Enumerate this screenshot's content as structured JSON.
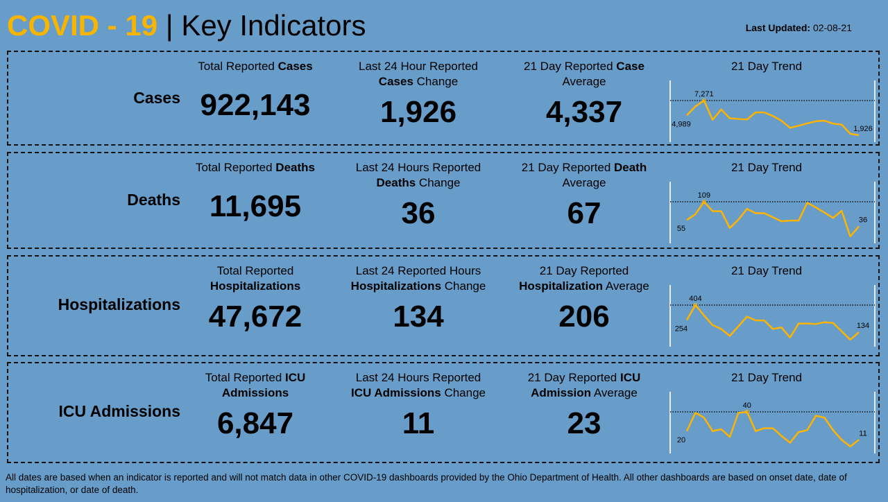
{
  "header": {
    "title_highlight": "COVID - 19",
    "title_separator": " | ",
    "title_rest": "Key Indicators",
    "updated_label": "Last Updated:",
    "updated_value": " 02-08-21"
  },
  "colors": {
    "accent": "#f7b500",
    "background": "#689cc9",
    "trend_line": "#ffb400"
  },
  "rows": [
    {
      "label": "Cases",
      "total": {
        "pre": "Total Reported ",
        "bold": "Cases",
        "post": "",
        "value": "922,143"
      },
      "change": {
        "line1": "Last 24 Hour Reported",
        "bold": "Cases",
        "post": " Change",
        "value": "1,926"
      },
      "avg": {
        "pre": "21 Day Reported ",
        "bold": "Case",
        "line2": "Average",
        "value": "4,337"
      },
      "trend_title": "21 Day Trend",
      "start_label": "4,989",
      "max_label": "7,271",
      "end_label": "1,926"
    },
    {
      "label": "Deaths",
      "total": {
        "pre": "Total Reported ",
        "bold": "Deaths",
        "post": "",
        "value": "11,695"
      },
      "change": {
        "line1": "Last 24 Hours Reported",
        "bold": "Deaths",
        "post": " Change",
        "value": "36"
      },
      "avg": {
        "pre": "21 Day Reported ",
        "bold": "Death",
        "line2": "Average",
        "value": "67"
      },
      "trend_title": "21 Day Trend",
      "start_label": "55",
      "max_label": "109",
      "end_label": "36"
    },
    {
      "label": "Hospitalizations",
      "total": {
        "pre": "Total Reported",
        "bold": "Hospitalizations",
        "post": "",
        "value": "47,672"
      },
      "change": {
        "line1": "Last 24 Reported Hours",
        "bold": "Hospitalizations",
        "post": " Change",
        "value": "134"
      },
      "avg": {
        "pre": "21 Day Reported",
        "bold": "Hospitalization",
        "line2": " Average",
        "value": "206"
      },
      "trend_title": "21 Day Trend",
      "start_label": "254",
      "max_label": "404",
      "end_label": "134"
    },
    {
      "label": "ICU Admissions",
      "total": {
        "pre": "Total Reported ",
        "bold": "ICU",
        "post": "Admissions",
        "value": "6,847"
      },
      "change": {
        "line1": "Last 24 Hours Reported",
        "bold": "ICU Admissions",
        "post": " Change",
        "value": "11"
      },
      "avg": {
        "pre": "21 Day Reported ",
        "bold": "ICU",
        "line2": "Admission",
        "line2b": " Average",
        "value": "23"
      },
      "trend_title": "21 Day Trend",
      "start_label": "20",
      "max_label": "40",
      "end_label": "11"
    }
  ],
  "chart_data": [
    {
      "type": "line",
      "days": 21,
      "values": [
        4989,
        6357,
        7271,
        4300,
        5900,
        4529,
        4438,
        4346,
        5443,
        5443,
        4895,
        4164,
        3067,
        3387,
        3752,
        4072,
        4164,
        3706,
        3569,
        2153,
        1926
      ]
    },
    {
      "type": "line",
      "days": 21,
      "values": [
        55,
        72,
        109,
        81,
        81,
        31,
        56,
        88,
        75,
        75,
        63,
        51,
        53,
        53,
        106,
        92,
        77,
        61,
        82,
        6,
        36
      ]
    },
    {
      "type": "line",
      "days": 21,
      "values": [
        254,
        404,
        301,
        204,
        166,
        96,
        193,
        289,
        251,
        251,
        166,
        181,
        80,
        220,
        220,
        215,
        233,
        226,
        143,
        58,
        134
      ]
    },
    {
      "type": "line",
      "days": 21,
      "values": [
        20,
        39,
        34,
        20,
        22,
        14,
        39,
        40,
        20,
        23,
        23,
        15,
        8,
        19,
        21,
        36,
        34,
        21,
        11,
        4,
        11
      ]
    }
  ],
  "footer": "All dates are based when an indicator is reported and will not match data in other COVID-19 dashboards provided by the Ohio Department of Health. All other dashboards are based on onset date, date of hospitalization, or date of death."
}
